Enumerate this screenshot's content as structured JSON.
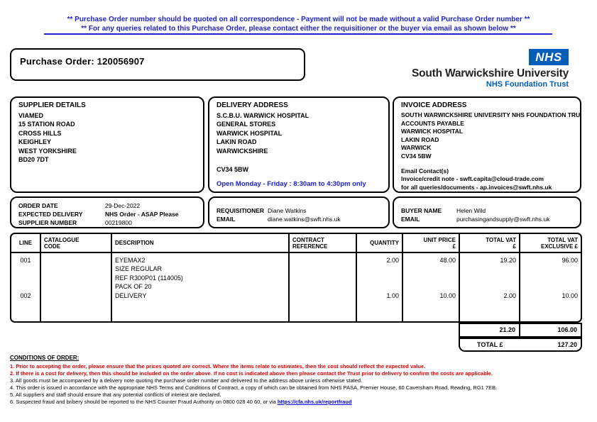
{
  "colors": {
    "notice_blue": "#2222cc",
    "nhs_blue": "#005EB8",
    "alert_red": "#dd0000",
    "link_blue": "#0000ee"
  },
  "notice": {
    "line1": "** Purchase Order number should be quoted on all correspondence - Payment will not be made without a valid Purchase Order number **",
    "line2": "** For any queries related to this Purchase Order, please contact either the requisitioner or the buyer via email as shown below **"
  },
  "purchase_order": {
    "label": "Purchase Order: 120056907"
  },
  "logo": {
    "nhs": "NHS",
    "organisation": "South Warwickshire University",
    "trust": "NHS Foundation Trust"
  },
  "supplier": {
    "heading": "SUPPLIER DETAILS",
    "lines": [
      "VIAMED",
      "15 STATION ROAD",
      "CROSS HILLS",
      "KEIGHLEY",
      "WEST YORKSHIRE",
      "BD20 7DT"
    ]
  },
  "delivery": {
    "heading": "DELIVERY ADDRESS",
    "lines": [
      "S.C.B.U. WARWICK HOSPITAL",
      "GENERAL STORES",
      "WARWICK HOSPITAL",
      "LAKIN ROAD",
      "WARWICKSHIRE"
    ],
    "postcode": "CV34 5BW",
    "open_hours": "Open Monday - Friday : 8:30am to 4:30pm only"
  },
  "invoice": {
    "heading": "INVOICE ADDRESS",
    "lines": [
      "SOUTH WARWICKSHIRE UNIVERSITY NHS FOUNDATION TRUST",
      "ACCOUNTS PAYABLE",
      "WARWICK HOSPITAL",
      "LAKIN ROAD",
      "WARWICK",
      "CV34 5BW"
    ],
    "email_heading": "Email Contact(s)",
    "email_invoice": "Invoice/credit note  - swft.capita@cloud-trade.com",
    "email_queries": "for all queries/documents  - ap.invoices@swft.nhs.uk"
  },
  "order_info": {
    "order_date_label": "ORDER DATE",
    "order_date": "29-Dec-2022",
    "expected_delivery_label": "EXPECTED DELIVERY",
    "expected_delivery": "NHS Order - ASAP Please",
    "supplier_number_label": "SUPPLIER NUMBER",
    "supplier_number": "00219800"
  },
  "requisitioner": {
    "name_label": "REQUISITIONER",
    "name": "Diane Watkins",
    "email_label": "EMAIL",
    "email": "diane.watkins@swft.nhs.uk"
  },
  "buyer": {
    "name_label": "BUYER NAME",
    "name": "Helen Wild",
    "email_label": "EMAIL",
    "email": "purchasingandsupply@swft.nhs.uk"
  },
  "items_table": {
    "columns": [
      {
        "l1": "LINE",
        "l2": ""
      },
      {
        "l1": "CATALOGUE",
        "l2": "CODE"
      },
      {
        "l1": "DESCRIPTION",
        "l2": ""
      },
      {
        "l1": "CONTRACT",
        "l2": "REFERENCE"
      },
      {
        "l1": "QUANTITY",
        "l2": ""
      },
      {
        "l1": "UNIT PRICE",
        "l2": "£"
      },
      {
        "l1": "TOTAL VAT",
        "l2": "£"
      },
      {
        "l1": "TOTAL VAT",
        "l2": "EXCLUSIVE £"
      }
    ],
    "rows": [
      {
        "line": "001",
        "catalogue_code": "",
        "description": [
          "EYEMAX2",
          "SIZE REGULAR",
          "REF R300P01 (114005)",
          "PACK OF 20"
        ],
        "contract_reference": "",
        "quantity": "2.00",
        "unit_price": "48.00",
        "total_vat": "19.20",
        "total_vat_exclusive": "96.00"
      },
      {
        "line": "002",
        "catalogue_code": "",
        "description": [
          "DELIVERY"
        ],
        "contract_reference": "",
        "quantity": "1.00",
        "unit_price": "10.00",
        "total_vat": "2.00",
        "total_vat_exclusive": "10.00"
      }
    ],
    "summary": {
      "total_vat": "21.20",
      "total_vat_exclusive": "106.00",
      "total_label": "TOTAL £",
      "total_value": "127.20"
    }
  },
  "conditions": {
    "heading": "CONDITIONS OF ORDER:",
    "items": [
      "1. Prior to accepting the order, please ensure that the prices quoted are correct. Where the items relate to estimates, then the cost should reflect the expected value.",
      "2. If there is a cost for delivery, then this should be included on the order above. If no cost is indicated above then please contact the Trust prior to delivery to confirm the costs are applicable.",
      "3. All goods must be accompanied by a delivery note quoting the purchase order number and delivered to the address above unless otherwise stated.",
      "4. This order is issued in accordance with the appropriate NHS Terms and Conditions of Contract, a copy of which can be obtained from NHS PASA, Premier House, 60 Caversham Road, Reading, RG1 7EB.",
      "5. All suppliers and staff should ensure that any potential conflicts of interest are declared."
    ],
    "item6_text": "6. Suspected fraud and bribery should be reported to the NHS Counter Fraud Authority on 0800 028 40 60, or via ",
    "item6_link": "https://cfa.nhs.uk/reportfraud"
  }
}
